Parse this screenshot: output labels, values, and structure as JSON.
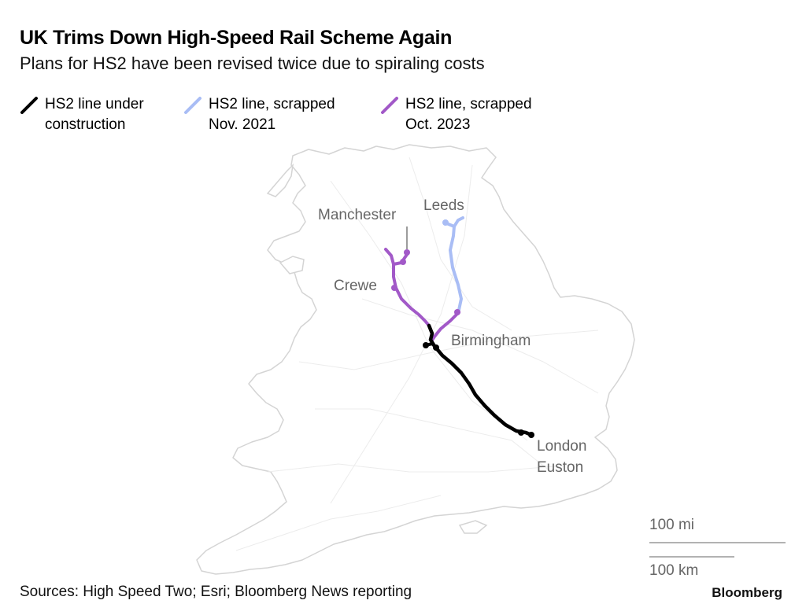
{
  "header": {
    "title": "UK Trims Down High-Speed Rail Scheme Again",
    "subtitle": "Plans for HS2 have been revised twice due to spiraling costs"
  },
  "legend": [
    {
      "label": "HS2 line under\nconstruction",
      "color": "#000000"
    },
    {
      "label": "HS2 line, scrapped\nNov. 2021",
      "color": "#a9bdf5"
    },
    {
      "label": "HS2 line, scrapped\nOct. 2023",
      "color": "#a259c8"
    }
  ],
  "cities": {
    "manchester": "Manchester",
    "leeds": "Leeds",
    "crewe": "Crewe",
    "birmingham": "Birmingham",
    "london_line1": "London",
    "london_line2": "Euston"
  },
  "scale": {
    "miles": "100 mi",
    "km": "100 km"
  },
  "footer": {
    "sources": "Sources: High Speed Two; Esri; Bloomberg News reporting",
    "brand": "Bloomberg"
  },
  "colors": {
    "construction": "#000000",
    "scrapped_2021": "#a9bdf5",
    "scrapped_2023": "#a259c8",
    "land": "#ffffff",
    "coast": "#dcdcdc",
    "labels": "#666666"
  }
}
